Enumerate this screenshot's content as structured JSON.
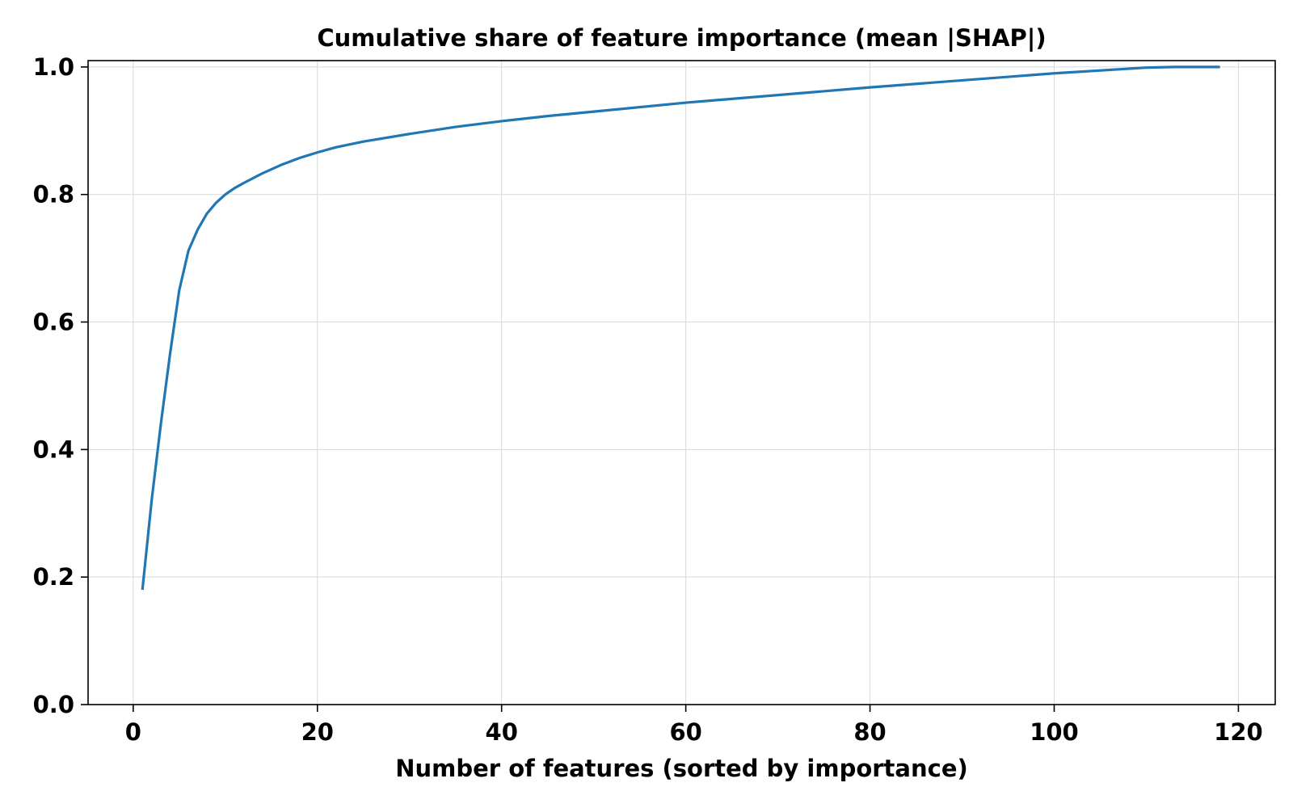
{
  "chart_data": {
    "type": "line",
    "title": "Cumulative share of feature importance (mean |SHAP|)",
    "xlabel": "Number of features (sorted by importance)",
    "ylabel": "",
    "xlim": [
      -4.9,
      124
    ],
    "ylim": [
      0,
      1.01
    ],
    "xticks": [
      0,
      20,
      40,
      60,
      80,
      100,
      120
    ],
    "xtick_labels": [
      "0",
      "20",
      "40",
      "60",
      "80",
      "100",
      "120"
    ],
    "yticks": [
      0.0,
      0.2,
      0.4,
      0.6,
      0.8,
      1.0
    ],
    "ytick_labels": [
      "0.0",
      "0.2",
      "0.4",
      "0.6",
      "0.8",
      "1.0"
    ],
    "grid": true,
    "legend": "none",
    "colors": {
      "line": "#1f77b4",
      "grid": "#d9d9d9",
      "axes": "#000000"
    },
    "series": [
      {
        "x": [
          1,
          2,
          3,
          4,
          5,
          6,
          7,
          8,
          9,
          10,
          11,
          12,
          14,
          16,
          18,
          20,
          22,
          25,
          30,
          35,
          40,
          45,
          50,
          60,
          70,
          80,
          90,
          100,
          110,
          113,
          118
        ],
        "y": [
          0.18,
          0.32,
          0.44,
          0.55,
          0.65,
          0.712,
          0.745,
          0.77,
          0.787,
          0.8,
          0.81,
          0.818,
          0.833,
          0.846,
          0.857,
          0.866,
          0.874,
          0.883,
          0.895,
          0.906,
          0.915,
          0.923,
          0.93,
          0.944,
          0.956,
          0.968,
          0.979,
          0.99,
          0.999,
          1.0,
          1.0
        ]
      }
    ]
  }
}
